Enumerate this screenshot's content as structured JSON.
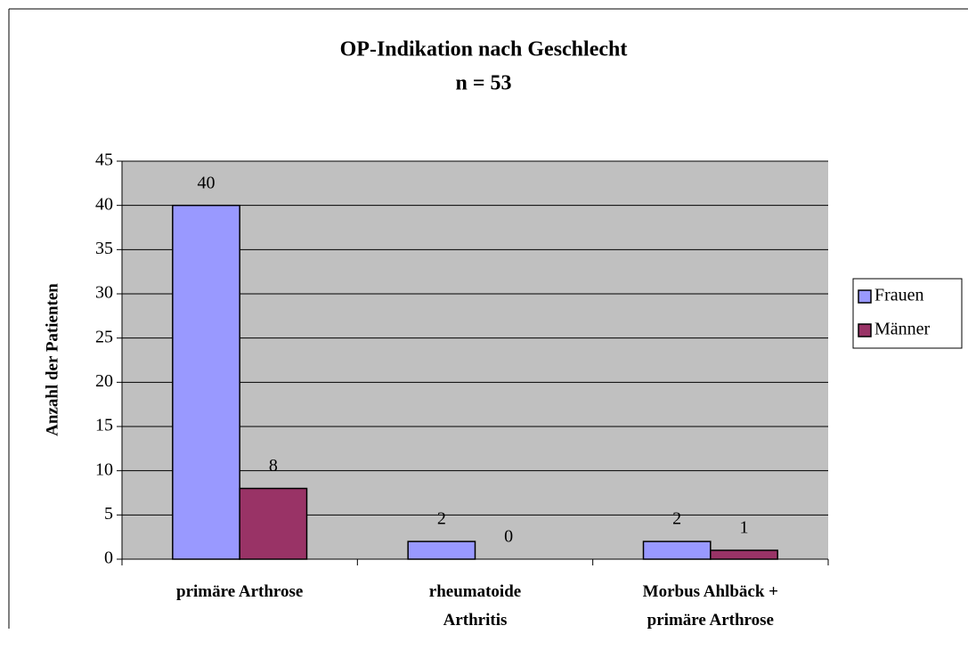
{
  "chart_data": {
    "type": "bar",
    "title": "OP-Indikation nach Geschlecht",
    "subtitle": "n = 53",
    "ylabel": "Anzahl der Patienten",
    "categories": [
      "primäre Arthrose",
      "rheumatoide Arthritis",
      "Morbus Ahlbäck + primäre Arthrose"
    ],
    "series": [
      {
        "name": "Frauen",
        "color": "#9999ff",
        "values": [
          40,
          2,
          2
        ]
      },
      {
        "name": "Männer",
        "color": "#993366",
        "values": [
          8,
          0,
          1
        ]
      }
    ],
    "ylim": [
      0,
      45
    ],
    "yticks": [
      0,
      5,
      10,
      15,
      20,
      25,
      30,
      35,
      40,
      45
    ],
    "grid": true,
    "legend": "right"
  }
}
